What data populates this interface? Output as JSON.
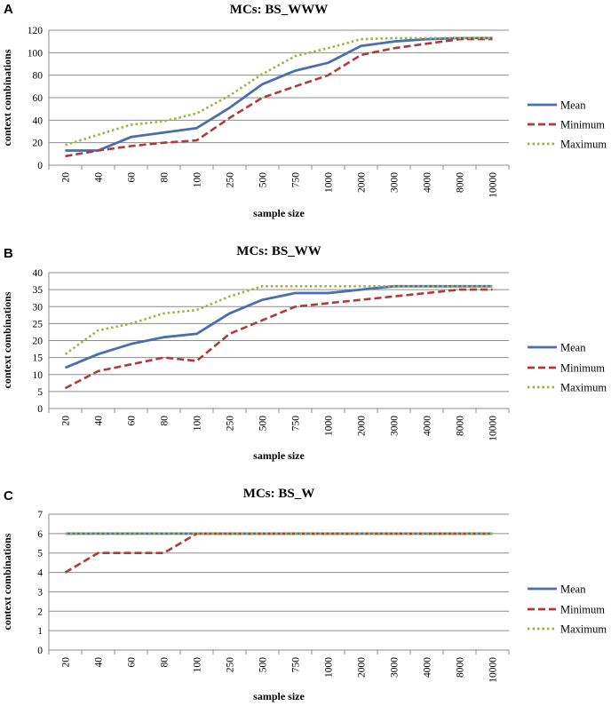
{
  "chart_data": [
    {
      "type": "line",
      "panel": "A",
      "title": "MCs: BS_WWW",
      "xlabel": "sample size",
      "ylabel": "context combinations",
      "categories": [
        "20",
        "40",
        "60",
        "80",
        "100",
        "250",
        "500",
        "750",
        "1000",
        "2000",
        "3000",
        "4000",
        "8000",
        "10000"
      ],
      "ylim": [
        0,
        120
      ],
      "yticks": [
        "0",
        "20",
        "40",
        "60",
        "80",
        "100",
        "120"
      ],
      "grid": true,
      "legend_position": "right",
      "series": [
        {
          "name": "Mean",
          "color": "#4a6fb0",
          "dash": "solid",
          "values": [
            13,
            13,
            25,
            29,
            33,
            51,
            72,
            84,
            91,
            106,
            110,
            112,
            113,
            113
          ]
        },
        {
          "name": "Minimum",
          "color": "#b03a3a",
          "dash": "dashed",
          "values": [
            8,
            13,
            17,
            20,
            22,
            42,
            60,
            70,
            80,
            98,
            104,
            108,
            112,
            112
          ]
        },
        {
          "name": "Maximum",
          "color": "#9ab53e",
          "dash": "dotted",
          "values": [
            18,
            27,
            36,
            39,
            46,
            62,
            81,
            97,
            104,
            112,
            113,
            113,
            113,
            113
          ]
        }
      ]
    },
    {
      "type": "line",
      "panel": "B",
      "title": "MCs: BS_WW",
      "xlabel": "sample size",
      "ylabel": "context combinations",
      "categories": [
        "20",
        "40",
        "60",
        "80",
        "100",
        "250",
        "500",
        "750",
        "1000",
        "2000",
        "3000",
        "4000",
        "8000",
        "10000"
      ],
      "ylim": [
        0,
        40
      ],
      "yticks": [
        "0",
        "5",
        "10",
        "15",
        "20",
        "25",
        "30",
        "35",
        "40"
      ],
      "grid": true,
      "legend_position": "right",
      "series": [
        {
          "name": "Mean",
          "color": "#4a6fb0",
          "dash": "solid",
          "values": [
            12,
            16,
            19,
            21,
            22,
            28,
            32,
            34,
            34,
            35,
            36,
            36,
            36,
            36
          ]
        },
        {
          "name": "Minimum",
          "color": "#b03a3a",
          "dash": "dashed",
          "values": [
            6,
            11,
            13,
            15,
            14,
            22,
            26,
            30,
            31,
            32,
            33,
            34,
            35,
            35
          ]
        },
        {
          "name": "Maximum",
          "color": "#9ab53e",
          "dash": "dotted",
          "values": [
            16,
            23,
            25,
            28,
            29,
            33,
            36,
            36,
            36,
            36,
            36,
            36,
            36,
            36
          ]
        }
      ]
    },
    {
      "type": "line",
      "panel": "C",
      "title": "MCs: BS_W",
      "xlabel": "sample size",
      "ylabel": "context combinations",
      "categories": [
        "20",
        "40",
        "60",
        "80",
        "100",
        "250",
        "500",
        "750",
        "1000",
        "2000",
        "3000",
        "4000",
        "8000",
        "10000"
      ],
      "ylim": [
        0,
        7
      ],
      "yticks": [
        "0",
        "1",
        "2",
        "3",
        "4",
        "5",
        "6",
        "7"
      ],
      "grid": true,
      "legend_position": "right",
      "series": [
        {
          "name": "Mean",
          "color": "#4a6fb0",
          "dash": "solid",
          "values": [
            6,
            6,
            6,
            6,
            6,
            6,
            6,
            6,
            6,
            6,
            6,
            6,
            6,
            6
          ]
        },
        {
          "name": "Minimum",
          "color": "#b03a3a",
          "dash": "dashed",
          "values": [
            4,
            5,
            5,
            5,
            6,
            6,
            6,
            6,
            6,
            6,
            6,
            6,
            6,
            6
          ]
        },
        {
          "name": "Maximum",
          "color": "#9ab53e",
          "dash": "dotted",
          "values": [
            6,
            6,
            6,
            6,
            6,
            6,
            6,
            6,
            6,
            6,
            6,
            6,
            6,
            6
          ]
        }
      ]
    }
  ]
}
